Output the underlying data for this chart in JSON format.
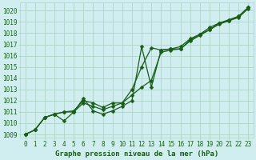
{
  "xlabel": "Graphe pression niveau de la mer (hPa)",
  "hours": [
    0,
    1,
    2,
    3,
    4,
    5,
    6,
    7,
    8,
    9,
    10,
    11,
    12,
    13,
    14,
    15,
    16,
    17,
    18,
    19,
    20,
    21,
    22,
    23
  ],
  "line_main": [
    1009.0,
    1009.4,
    1010.5,
    1010.8,
    1010.2,
    1011.0,
    1012.2,
    1011.1,
    1010.8,
    1011.1,
    1011.5,
    1012.0,
    1016.8,
    1013.2,
    1016.5,
    1016.6,
    1016.6,
    1017.4,
    1017.9,
    1018.3,
    1018.9,
    1019.1,
    1019.5,
    1020.3
  ],
  "line_low": [
    1009.0,
    1009.4,
    1010.5,
    1010.8,
    1011.0,
    1011.0,
    1011.8,
    1011.5,
    1011.2,
    1011.5,
    1011.8,
    1012.5,
    1013.2,
    1013.8,
    1016.3,
    1016.5,
    1016.6,
    1017.3,
    1017.8,
    1018.3,
    1018.8,
    1019.1,
    1019.4,
    1020.2
  ],
  "line_high": [
    1009.0,
    1009.4,
    1010.5,
    1010.8,
    1011.0,
    1011.1,
    1012.0,
    1011.8,
    1011.4,
    1011.8,
    1011.8,
    1013.0,
    1015.0,
    1016.7,
    1016.5,
    1016.6,
    1016.8,
    1017.5,
    1017.9,
    1018.5,
    1018.9,
    1019.2,
    1019.5,
    1020.3
  ],
  "ylim_min": 1009,
  "ylim_max": 1020,
  "bg_color": "#d0eef0",
  "grid_color": "#b0d4c8",
  "line_color": "#1a5c1a",
  "marker_size": 2.5,
  "line_width": 0.9,
  "tick_fontsize": 5.5,
  "xlabel_fontsize": 6.5
}
